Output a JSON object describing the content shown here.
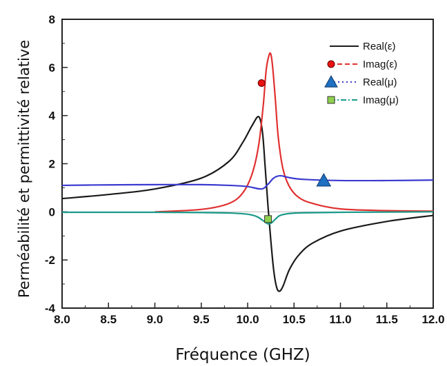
{
  "chart_data": {
    "type": "line",
    "xlabel": "Fréquence (GHZ)",
    "ylabel": "Perméabilité et permittivité relative",
    "xlim": [
      8.0,
      12.0
    ],
    "ylim": [
      -4,
      8
    ],
    "x_ticks": [
      "8.0",
      "8.5",
      "9.0",
      "9.5",
      "10.0",
      "10.5",
      "11.0",
      "11.5",
      "12.0"
    ],
    "y_ticks": [
      "8",
      "6",
      "4",
      "2",
      "0",
      "-2",
      "-4"
    ],
    "grid": false,
    "legend_position": "top-right",
    "series": [
      {
        "name": "Real(ε)",
        "color": "#1a1a1a",
        "style": "solid",
        "marker": "none",
        "x": [
          8.0,
          8.5,
          9.0,
          9.5,
          9.8,
          9.95,
          10.05,
          10.12,
          10.16,
          10.19,
          10.22,
          10.25,
          10.28,
          10.31,
          10.34,
          10.38,
          10.45,
          10.55,
          10.7,
          11.0,
          11.5,
          12.0
        ],
        "y": [
          0.55,
          0.72,
          0.95,
          1.4,
          2.1,
          2.9,
          3.6,
          3.95,
          3.3,
          1.8,
          0.2,
          -1.2,
          -2.4,
          -3.1,
          -3.3,
          -3.1,
          -2.4,
          -1.8,
          -1.3,
          -0.8,
          -0.4,
          -0.15
        ]
      },
      {
        "name": "Imag(ε)",
        "color": "#e03030",
        "style": "dashed",
        "marker": "circle",
        "marker_color": "#e81010",
        "x": [
          9.0,
          9.5,
          9.8,
          9.95,
          10.05,
          10.12,
          10.17,
          10.2,
          10.23,
          10.25,
          10.27,
          10.3,
          10.33,
          10.38,
          10.45,
          10.55,
          10.7,
          11.0,
          11.5,
          12.0
        ],
        "y": [
          0.0,
          0.1,
          0.35,
          0.8,
          1.6,
          2.8,
          4.5,
          5.9,
          6.5,
          6.55,
          6.0,
          4.6,
          3.1,
          1.8,
          1.05,
          0.6,
          0.35,
          0.12,
          0.05,
          0.03
        ],
        "marker_x": 10.15,
        "marker_y": 5.35
      },
      {
        "name": "Real(μ)",
        "color": "#3a3ad0",
        "style": "dotted",
        "marker": "triangle",
        "marker_color": "#1f6fc2",
        "x": [
          8.0,
          8.5,
          9.0,
          9.5,
          9.8,
          10.0,
          10.15,
          10.22,
          10.28,
          10.35,
          10.45,
          10.6,
          11.0,
          11.5,
          12.0
        ],
        "y": [
          1.1,
          1.12,
          1.13,
          1.13,
          1.1,
          1.05,
          0.95,
          1.15,
          1.4,
          1.5,
          1.42,
          1.35,
          1.3,
          1.3,
          1.32
        ],
        "marker_x": 10.82,
        "marker_y": 1.3
      },
      {
        "name": "Imag(μ)",
        "color": "#1a9a8a",
        "style": "dash-dot",
        "marker": "square",
        "marker_color": "#8fd14f",
        "x": [
          8.0,
          8.5,
          9.0,
          9.5,
          9.8,
          10.0,
          10.1,
          10.18,
          10.22,
          10.26,
          10.3,
          10.35,
          10.45,
          10.6,
          11.0,
          11.5,
          12.0
        ],
        "y": [
          -0.02,
          -0.02,
          -0.02,
          -0.03,
          -0.05,
          -0.1,
          -0.2,
          -0.4,
          -0.5,
          -0.45,
          -0.3,
          -0.15,
          -0.07,
          -0.04,
          -0.02,
          -0.01,
          0.0
        ],
        "marker_x": 10.22,
        "marker_y": -0.3
      }
    ]
  }
}
